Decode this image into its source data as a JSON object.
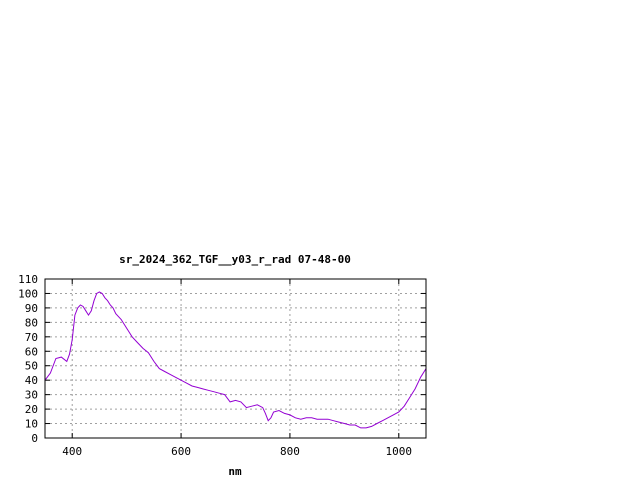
{
  "chart_data": {
    "type": "line",
    "title": "sr_2024_362_TGF__y03_r_rad 07-48-00",
    "xlabel": "nm",
    "ylabel": "",
    "xlim": [
      350,
      1050
    ],
    "ylim": [
      0,
      110
    ],
    "xticks": [
      400,
      600,
      800,
      1000
    ],
    "yticks": [
      0,
      10,
      20,
      30,
      40,
      50,
      60,
      70,
      80,
      90,
      100,
      110
    ],
    "grid": true,
    "legend": "none",
    "line_color": "#9400d3",
    "series": [
      {
        "x": [
          350,
          360,
          370,
          380,
          390,
          395,
          400,
          405,
          410,
          415,
          420,
          425,
          430,
          435,
          440,
          445,
          450,
          455,
          460,
          465,
          470,
          475,
          480,
          490,
          500,
          510,
          520,
          530,
          540,
          550,
          560,
          570,
          580,
          590,
          600,
          610,
          620,
          630,
          640,
          650,
          660,
          670,
          680,
          690,
          700,
          710,
          720,
          730,
          740,
          750,
          755,
          760,
          765,
          770,
          780,
          790,
          800,
          810,
          820,
          830,
          840,
          850,
          860,
          870,
          880,
          890,
          900,
          910,
          920,
          930,
          940,
          950,
          960,
          970,
          980,
          990,
          1000,
          1010,
          1020,
          1030,
          1040,
          1050
        ],
        "values": [
          40,
          45,
          55,
          56,
          53,
          58,
          68,
          85,
          90,
          92,
          91,
          88,
          85,
          88,
          95,
          100,
          101,
          100,
          97,
          95,
          92,
          90,
          86,
          82,
          76,
          70,
          66,
          62,
          59,
          53,
          48,
          46,
          44,
          42,
          40,
          38,
          36,
          35,
          34,
          33,
          32,
          31,
          30,
          25,
          26,
          25,
          21,
          22,
          23,
          21,
          17,
          12,
          14,
          18,
          19,
          17,
          16,
          14,
          13,
          14,
          14,
          13,
          13,
          13,
          12,
          11,
          10,
          9,
          9,
          7,
          7,
          8,
          10,
          12,
          14,
          16,
          18,
          22,
          28,
          34,
          42,
          48
        ]
      }
    ]
  }
}
